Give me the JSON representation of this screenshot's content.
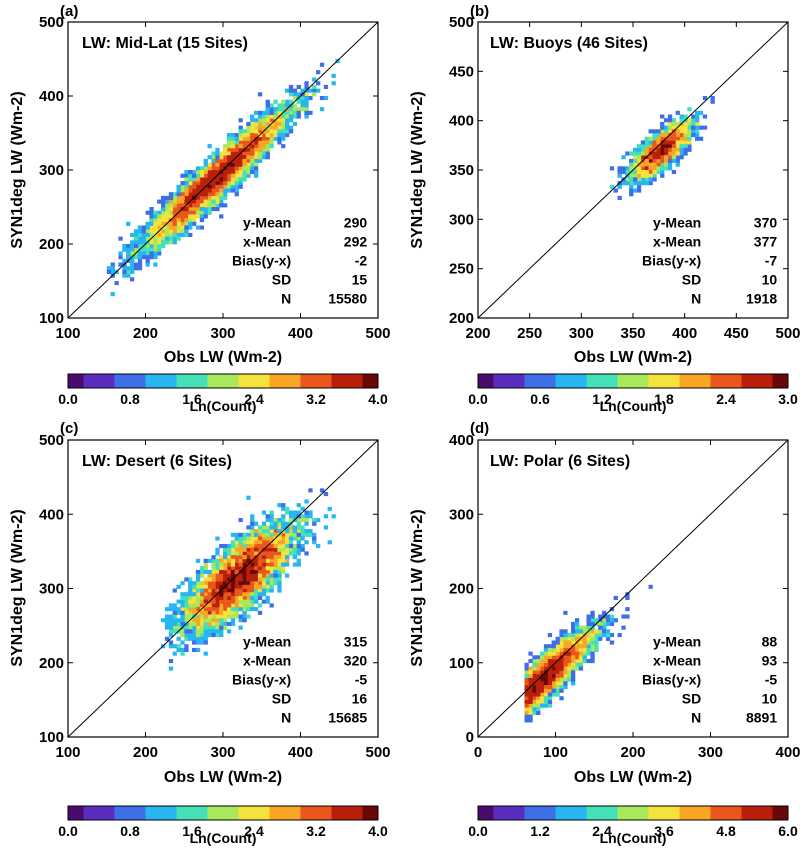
{
  "chart_data": [
    {
      "type": "heatmap",
      "panel_label": "(a)",
      "title": "LW: Mid-Lat (15 Sites)",
      "xlabel": "Obs LW (Wm-2)",
      "ylabel": "SYN1deg LW (Wm-2)",
      "xlim": [
        100,
        500
      ],
      "ylim": [
        100,
        500
      ],
      "xticks": [
        "100",
        "200",
        "300",
        "400",
        "500"
      ],
      "yticks": [
        "100",
        "200",
        "300",
        "400",
        "500"
      ],
      "one_to_one_line": true,
      "stats": [
        {
          "label": "y-Mean",
          "value": "290"
        },
        {
          "label": "x-Mean",
          "value": "292"
        },
        {
          "label": "Bias(y-x)",
          "value": "-2"
        },
        {
          "label": "SD",
          "value": "15"
        },
        {
          "label": "N",
          "value": "15580"
        }
      ],
      "density": {
        "center": [
          292,
          290
        ],
        "sd_along": 62,
        "sd_across": 10,
        "n": 15580,
        "x_range": [
          150,
          450
        ]
      },
      "colorbar": {
        "label": "Ln(Count)",
        "range": [
          0,
          4.0
        ],
        "ticks": [
          "0.0",
          "0.8",
          "1.6",
          "2.4",
          "3.2",
          "4.0"
        ]
      }
    },
    {
      "type": "heatmap",
      "panel_label": "(b)",
      "title": "LW: Buoys (46 Sites)",
      "xlabel": "Obs LW (Wm-2)",
      "ylabel": "SYN1deg LW (Wm-2)",
      "xlim": [
        200,
        500
      ],
      "ylim": [
        200,
        500
      ],
      "xticks": [
        "200",
        "250",
        "300",
        "350",
        "400",
        "450",
        "500"
      ],
      "yticks": [
        "200",
        "250",
        "300",
        "350",
        "400",
        "450",
        "500"
      ],
      "one_to_one_line": true,
      "stats": [
        {
          "label": "y-Mean",
          "value": "370"
        },
        {
          "label": "x-Mean",
          "value": "377"
        },
        {
          "label": "Bias(y-x)",
          "value": "-7"
        },
        {
          "label": "SD",
          "value": "10"
        },
        {
          "label": "N",
          "value": "1918"
        }
      ],
      "density": {
        "center": [
          377,
          370
        ],
        "sd_along": 20,
        "sd_across": 7,
        "n": 1918,
        "x_range": [
          225,
          470
        ]
      },
      "colorbar": {
        "label": "Ln(Count)",
        "range": [
          0,
          3.0
        ],
        "ticks": [
          "0.0",
          "0.6",
          "1.2",
          "1.8",
          "2.4",
          "3.0"
        ]
      }
    },
    {
      "type": "heatmap",
      "panel_label": "(c)",
      "title": "LW: Desert (6 Sites)",
      "xlabel": "Obs LW (Wm-2)",
      "ylabel": "SYN1deg LW (Wm-2)",
      "xlim": [
        100,
        500
      ],
      "ylim": [
        100,
        500
      ],
      "xticks": [
        "100",
        "200",
        "300",
        "400",
        "500"
      ],
      "yticks": [
        "100",
        "200",
        "300",
        "400",
        "500"
      ],
      "one_to_one_line": true,
      "stats": [
        {
          "label": "y-Mean",
          "value": "315"
        },
        {
          "label": "x-Mean",
          "value": "320"
        },
        {
          "label": "Bias(y-x)",
          "value": "-5"
        },
        {
          "label": "SD",
          "value": "16"
        },
        {
          "label": "N",
          "value": "15685"
        }
      ],
      "density": {
        "center": [
          320,
          315
        ],
        "sd_along": 45,
        "sd_across": 16,
        "n": 15685,
        "x_range": [
          220,
          450
        ]
      },
      "colorbar": {
        "label": "Ln(Count)",
        "range": [
          0,
          4.0
        ],
        "ticks": [
          "0.0",
          "0.8",
          "1.6",
          "2.4",
          "3.2",
          "4.0"
        ]
      }
    },
    {
      "type": "heatmap",
      "panel_label": "(d)",
      "title": "LW: Polar (6 Sites)",
      "xlabel": "Obs LW (Wm-2)",
      "ylabel": "SYN1deg LW (Wm-2)",
      "xlim": [
        0,
        400
      ],
      "ylim": [
        0,
        400
      ],
      "xticks": [
        "0",
        "100",
        "200",
        "300",
        "400"
      ],
      "yticks": [
        "0",
        "100",
        "200",
        "300",
        "400"
      ],
      "one_to_one_line": true,
      "stats": [
        {
          "label": "y-Mean",
          "value": "88"
        },
        {
          "label": "x-Mean",
          "value": "93"
        },
        {
          "label": "Bias(y-x)",
          "value": "-5"
        },
        {
          "label": "SD",
          "value": "10"
        },
        {
          "label": "N",
          "value": "8891"
        }
      ],
      "density": {
        "center": [
          80,
          75
        ],
        "sd_along": 45,
        "sd_across": 10,
        "n": 8891,
        "x_range": [
          60,
          370
        ]
      },
      "colorbar": {
        "label": "Ln(Count)",
        "range": [
          0,
          6.0
        ],
        "ticks": [
          "0.0",
          "1.2",
          "2.4",
          "3.6",
          "4.8",
          "6.0"
        ]
      }
    }
  ],
  "colormap": [
    "#4b0a6e",
    "#5a2dbf",
    "#3f6fe8",
    "#27b6ef",
    "#45e0b8",
    "#a8e85a",
    "#f6e23c",
    "#f9a526",
    "#e8571b",
    "#b8200c",
    "#6a0805"
  ]
}
